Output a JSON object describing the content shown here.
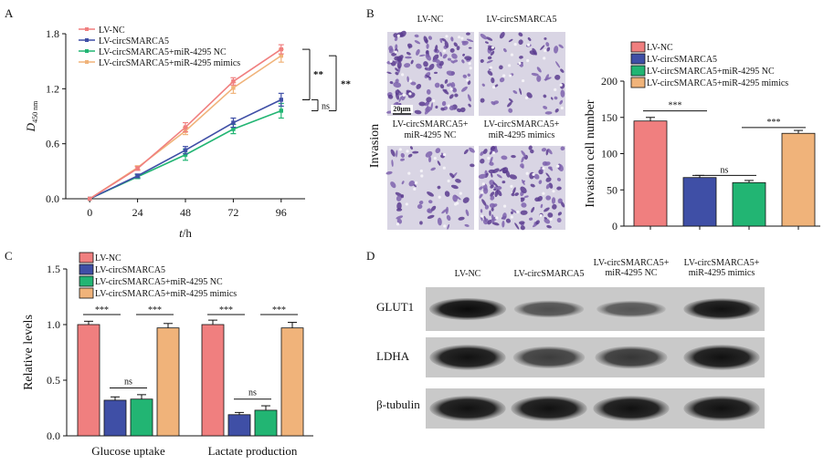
{
  "panels": {
    "A": "A",
    "B": "B",
    "C": "C",
    "D": "D"
  },
  "colors": {
    "nc": "#F07F7F",
    "circ": "#3F4FA6",
    "circ_nc": "#22B573",
    "circ_mimic": "#F0B37A"
  },
  "chart_data": [
    {
      "panel": "A",
      "type": "line",
      "x": [
        0,
        24,
        48,
        72,
        96
      ],
      "xlabel": "t/h",
      "xlabel_italic": "t",
      "xlabel_rest": "/h",
      "ylabel_main": "D",
      "ylabel_sub": "450 nm",
      "ylim": [
        0,
        1.8
      ],
      "yticks": [
        "0.0",
        "0.6",
        "1.2",
        "1.8"
      ],
      "xticks": [
        "0",
        "24",
        "48",
        "72",
        "96"
      ],
      "legend_position": "top-left",
      "series": [
        {
          "name": "LV-NC",
          "color": "#F07F7F",
          "values": [
            0,
            0.33,
            0.78,
            1.28,
            1.63
          ],
          "errors": [
            0,
            0.02,
            0.05,
            0.04,
            0.05
          ]
        },
        {
          "name": "LV-circSMARCA5",
          "color": "#3F4FA6",
          "values": [
            0,
            0.25,
            0.53,
            0.83,
            1.08
          ],
          "errors": [
            0,
            0.02,
            0.04,
            0.05,
            0.07
          ]
        },
        {
          "name": "LV-circSMARCA5+miR-4295 NC",
          "color": "#22B573",
          "values": [
            0,
            0.24,
            0.48,
            0.76,
            0.96
          ],
          "errors": [
            0,
            0.02,
            0.06,
            0.05,
            0.08
          ]
        },
        {
          "name": "LV-circSMARCA5+miR-4295 mimics",
          "color": "#F0B37A",
          "values": [
            0,
            0.34,
            0.74,
            1.21,
            1.56
          ],
          "errors": [
            0,
            0.02,
            0.04,
            0.06,
            0.07
          ]
        }
      ],
      "annotations": [
        "**",
        "ns",
        "**"
      ]
    },
    {
      "panel": "B",
      "type": "bar",
      "categories": [
        "LV-NC",
        "LV-circSMARCA5",
        "LV-circSMARCA5+miR-4295 NC",
        "LV-circSMARCA5+miR-4295 mimics"
      ],
      "values": [
        145,
        67,
        60,
        128
      ],
      "errors": [
        5,
        3,
        3,
        4
      ],
      "colors": [
        "#F07F7F",
        "#3F4FA6",
        "#22B573",
        "#F0B37A"
      ],
      "ylabel": "Invasion cell number",
      "ylim": [
        0,
        200
      ],
      "yticks": [
        "0",
        "50",
        "100",
        "150",
        "200"
      ],
      "legend_position": "top",
      "annotations": [
        "***",
        "ns",
        "***"
      ]
    },
    {
      "panel": "C",
      "type": "bar",
      "categories": [
        "Glucose uptake",
        "Lactate production"
      ],
      "series": [
        {
          "name": "LV-NC",
          "color": "#F07F7F",
          "values": [
            1.0,
            1.0
          ],
          "errors": [
            0.03,
            0.04
          ]
        },
        {
          "name": "LV-circSMARCA5",
          "color": "#3F4FA6",
          "values": [
            0.32,
            0.19
          ],
          "errors": [
            0.03,
            0.02
          ]
        },
        {
          "name": "LV-circSMARCA5+miR-4295 NC",
          "color": "#22B573",
          "values": [
            0.33,
            0.23
          ],
          "errors": [
            0.04,
            0.04
          ]
        },
        {
          "name": "LV-circSMARCA5+miR-4295 mimics",
          "color": "#F0B37A",
          "values": [
            0.97,
            0.97
          ],
          "errors": [
            0.04,
            0.05
          ]
        }
      ],
      "ylabel": "Relative levels",
      "ylim": [
        0,
        1.5
      ],
      "yticks": [
        "0.0",
        "0.5",
        "1.0",
        "1.5"
      ],
      "legend_position": "top-left",
      "annotations": [
        "***",
        "ns",
        "***",
        "***",
        "ns",
        "***"
      ]
    }
  ],
  "panelB_images": {
    "side_label": "Invasion",
    "labels": [
      "LV-NC",
      "LV-circSMARCA5",
      "LV-circSMARCA5+\nmiR-4295 NC",
      "LV-circSMARCA5+\nmiR-4295 mimics"
    ],
    "label_lines": [
      [
        "LV-NC"
      ],
      [
        "LV-circSMARCA5"
      ],
      [
        "LV-circSMARCA5+",
        "miR-4295 NC"
      ],
      [
        "LV-circSMARCA5+",
        "miR-4295 mimics"
      ]
    ],
    "scale_bar": "20μm"
  },
  "panelD": {
    "column_labels": [
      [
        "LV-NC"
      ],
      [
        "LV-circSMARCA5"
      ],
      [
        "LV-circSMARCA5+",
        "miR-4295 NC"
      ],
      [
        "LV-circSMARCA5+",
        "miR-4295 mimics"
      ]
    ],
    "rows": [
      {
        "label": "GLUT1",
        "intensity": [
          1.0,
          0.45,
          0.4,
          0.95
        ]
      },
      {
        "label": "LDHA",
        "intensity": [
          0.95,
          0.6,
          0.65,
          0.95
        ]
      },
      {
        "label": "β-tubulin",
        "intensity": [
          0.95,
          0.95,
          0.95,
          0.95
        ]
      }
    ]
  }
}
